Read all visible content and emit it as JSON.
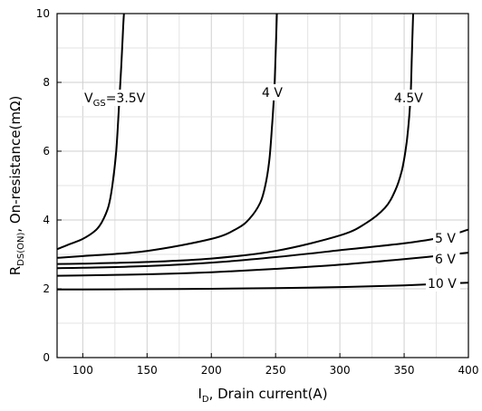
{
  "chart_data": {
    "type": "line",
    "title": "",
    "xlabel": {
      "main": "I",
      "sub": "D",
      "rest": ", Drain current(A)"
    },
    "ylabel": {
      "main": "R",
      "sub": "DS(ON)",
      "rest": ", On-resistance(mΩ)"
    },
    "xlim": [
      80,
      400
    ],
    "ylim": [
      0,
      10
    ],
    "xticks": [
      100,
      150,
      200,
      250,
      300,
      350,
      400
    ],
    "yticks": [
      0,
      2,
      4,
      6,
      8,
      10
    ],
    "grid": true,
    "series": [
      {
        "name": "VGS=3.5V",
        "label": {
          "pre": "V",
          "sub": "GS",
          "post": "=3.5V"
        },
        "x": [
          80,
          90,
          100,
          110,
          115,
          120,
          123,
          126,
          128,
          130,
          131,
          132
        ],
        "y": [
          3.15,
          3.3,
          3.45,
          3.7,
          3.95,
          4.4,
          5.0,
          6.0,
          7.2,
          8.5,
          9.3,
          10
        ]
      },
      {
        "name": "4 V",
        "label": {
          "pre": "4 V",
          "sub": "",
          "post": ""
        },
        "x": [
          80,
          100,
          150,
          200,
          220,
          230,
          238,
          242,
          245,
          247,
          249,
          250,
          251
        ],
        "y": [
          2.9,
          2.95,
          3.1,
          3.45,
          3.75,
          4.05,
          4.5,
          5.0,
          5.7,
          6.6,
          7.8,
          8.8,
          10
        ]
      },
      {
        "name": "4.5V",
        "label": {
          "pre": "4.5V",
          "sub": "",
          "post": ""
        },
        "x": [
          80,
          100,
          150,
          200,
          250,
          300,
          320,
          335,
          343,
          348,
          351,
          353,
          355,
          356,
          357
        ],
        "y": [
          2.72,
          2.73,
          2.78,
          2.88,
          3.1,
          3.55,
          3.9,
          4.35,
          4.85,
          5.4,
          6.0,
          6.6,
          7.6,
          8.8,
          10
        ]
      },
      {
        "name": "5 V",
        "label": {
          "pre": "5 V",
          "sub": "",
          "post": ""
        },
        "x": [
          80,
          100,
          150,
          200,
          250,
          300,
          350,
          380,
          400
        ],
        "y": [
          2.6,
          2.61,
          2.66,
          2.76,
          2.92,
          3.12,
          3.32,
          3.5,
          3.72
        ]
      },
      {
        "name": "6 V",
        "label": {
          "pre": "6 V",
          "sub": "",
          "post": ""
        },
        "x": [
          80,
          100,
          150,
          200,
          250,
          300,
          350,
          400
        ],
        "y": [
          2.38,
          2.39,
          2.42,
          2.48,
          2.58,
          2.7,
          2.86,
          3.05
        ]
      },
      {
        "name": "10 V",
        "label": {
          "pre": "10 V",
          "sub": "",
          "post": ""
        },
        "x": [
          80,
          100,
          150,
          200,
          250,
          300,
          350,
          400
        ],
        "y": [
          1.98,
          1.98,
          1.99,
          2.0,
          2.02,
          2.05,
          2.1,
          2.18
        ]
      }
    ]
  }
}
